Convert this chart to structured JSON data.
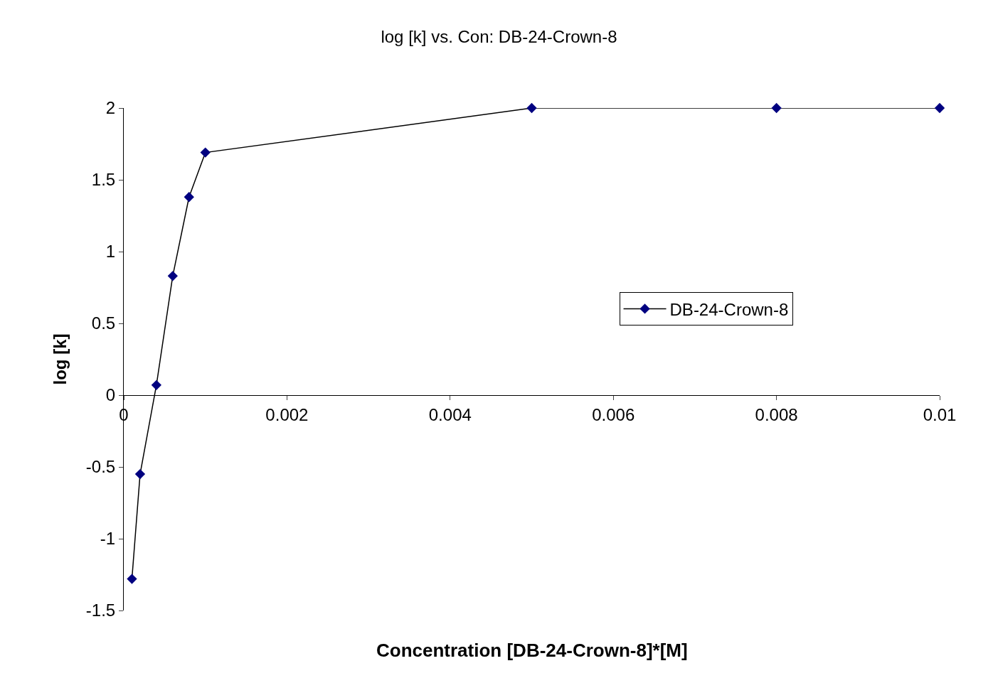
{
  "chart_data": {
    "type": "line",
    "title": "log [k] vs. Con: DB-24-Crown-8",
    "xlabel": "Concentration [DB-24-Crown-8]*[M]",
    "ylabel": "log [k]",
    "x": [
      0.0001,
      0.0002,
      0.0004,
      0.0006,
      0.0008,
      0.001,
      0.005,
      0.008,
      0.01
    ],
    "series": [
      {
        "name": "DB-24-Crown-8",
        "color": "#000080",
        "values": [
          -1.28,
          -0.55,
          0.07,
          0.83,
          1.38,
          1.69,
          2.0,
          2.0,
          2.0
        ]
      }
    ],
    "xlim": [
      0,
      0.01
    ],
    "xticks": [
      0,
      0.002,
      0.004,
      0.006,
      0.008,
      0.01
    ],
    "ylim": [
      -1.5,
      2
    ],
    "yticks": [
      -1.5,
      -1,
      -0.5,
      0,
      0.5,
      1,
      1.5,
      2
    ],
    "legend": "right",
    "marker": "diamond",
    "line_style": "solid"
  }
}
